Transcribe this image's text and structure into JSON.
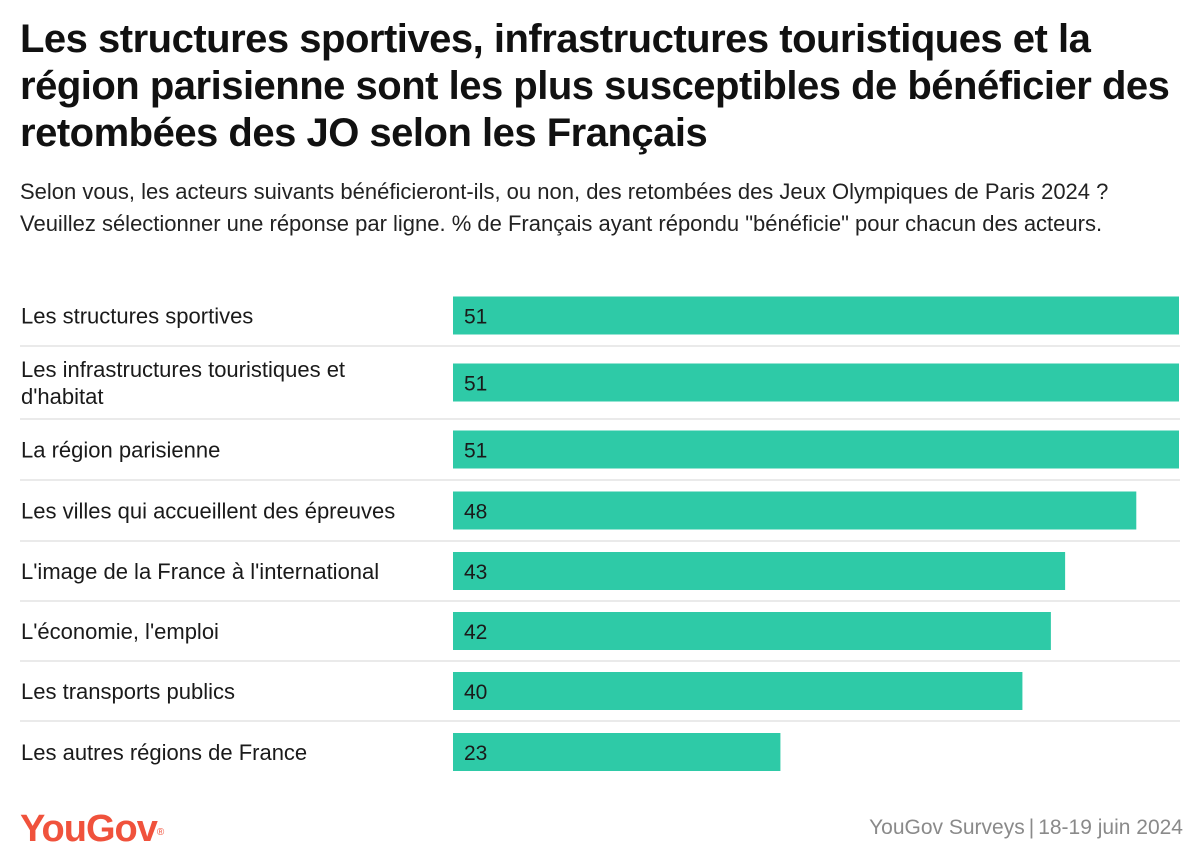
{
  "header": {
    "title": "Les structures sportives, infrastructures touristiques et la région parisienne sont les plus susceptibles de bénéficier des retombées des JO selon les Français",
    "subtitle": "Selon vous, les acteurs suivants bénéficieront-ils, ou non, des retombées des Jeux Olympiques de Paris 2024 ? Veuillez sélectionner une réponse par ligne. % de Français ayant répondu \"bénéficie\" pour chacun des acteurs."
  },
  "chart_data": {
    "type": "bar",
    "orientation": "horizontal",
    "categories": [
      [
        "Les structures sportives"
      ],
      [
        "Les infrastructures touristiques et",
        "d'habitat"
      ],
      [
        "La région parisienne"
      ],
      [
        "Les villes qui accueillent des épreuves"
      ],
      [
        "L'image de la France à l'international"
      ],
      [
        "L'économie, l'emploi"
      ],
      [
        "Les transports publics"
      ],
      [
        "Les autres régions de France"
      ]
    ],
    "values": [
      51,
      51,
      51,
      48,
      43,
      42,
      40,
      23
    ],
    "xlim": [
      0,
      51
    ],
    "grid": false,
    "data_labels": "inside-left",
    "colors": {
      "bar": "#2ecaa7",
      "separator": "#d6d6d6",
      "text": "#1a1a1a"
    }
  },
  "footer": {
    "brand": "YouGov",
    "brand_mark": "®",
    "brand_color": "#f0523c",
    "source": "YouGov Surveys",
    "separator": "|",
    "date": "18-19 juin 2024"
  }
}
